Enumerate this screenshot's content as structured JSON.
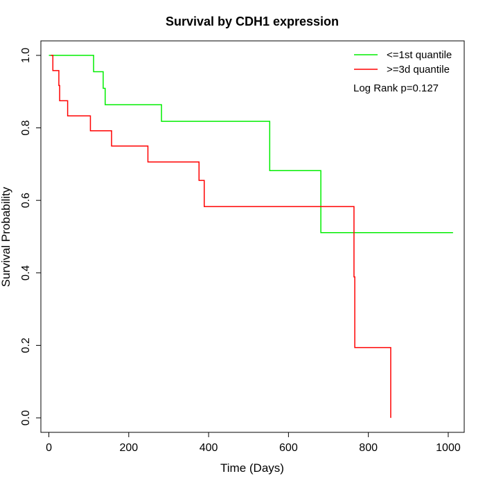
{
  "chart_data": {
    "type": "line",
    "title": "Survival by CDH1 expression",
    "xlabel": "Time (Days)",
    "ylabel": "Survival Probability",
    "xlim": [
      -20,
      1040
    ],
    "ylim": [
      -0.04,
      1.04
    ],
    "xticks": [
      0,
      200,
      400,
      600,
      800,
      1000
    ],
    "yticks": [
      0.0,
      0.2,
      0.4,
      0.6,
      0.8,
      1.0
    ],
    "xtick_labels": [
      "0",
      "200",
      "400",
      "600",
      "800",
      "1000"
    ],
    "ytick_labels": [
      "0.0",
      "0.2",
      "0.4",
      "0.6",
      "0.8",
      "1.0"
    ],
    "legend_position": "top-right",
    "grid": false,
    "step": true,
    "annotation": "Log Rank p=0.127",
    "series": [
      {
        "name": "<=1st quantile",
        "color": "#00ee00",
        "x": [
          0,
          112,
          136,
          141,
          282,
          553,
          681,
          1012
        ],
        "y": [
          1.0,
          0.955,
          0.909,
          0.864,
          0.818,
          0.682,
          0.511,
          0.511
        ]
      },
      {
        "name": ">=3d quantile",
        "color": "#ff0000",
        "x": [
          5,
          10,
          25,
          27,
          47,
          104,
          157,
          248,
          376,
          389,
          764,
          766,
          855,
          856
        ],
        "y": [
          1.0,
          0.958,
          0.917,
          0.875,
          0.833,
          0.792,
          0.75,
          0.706,
          0.655,
          0.583,
          0.389,
          0.194,
          0.194,
          0.0
        ]
      }
    ]
  }
}
